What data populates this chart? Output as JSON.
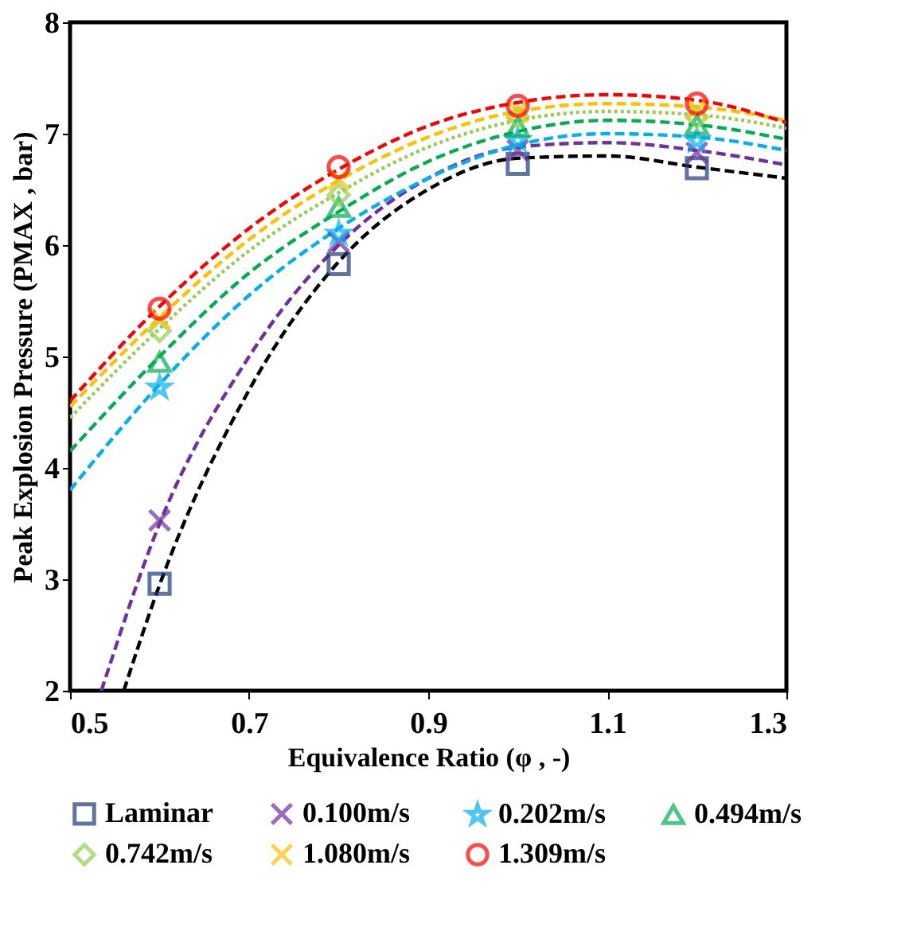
{
  "chart_data": {
    "type": "scatter",
    "xlabel": "Equivalence Ratio (φ , -)",
    "ylabel": "Peak Explosion Pressure (PMAX , bar)",
    "x": [
      0.6,
      0.8,
      1.0,
      1.2
    ],
    "xlim": [
      0.5,
      1.3
    ],
    "xticks": [
      0.5,
      0.7,
      0.9,
      1.1,
      1.3
    ],
    "ylim": [
      2,
      8
    ],
    "yticks": [
      2,
      3,
      4,
      5,
      6,
      7,
      8
    ],
    "grid": false,
    "legend": "bottom",
    "series": [
      {
        "name": "Laminar",
        "color": "#1f3a7a",
        "marker": "square",
        "values": [
          2.96,
          5.83,
          6.73,
          6.69
        ]
      },
      {
        "name": "0.100m/s",
        "color": "#7030a0",
        "marker": "cross",
        "values": [
          3.53,
          6.03,
          6.85,
          6.83
        ]
      },
      {
        "name": "0.202m/s",
        "color": "#00b0f0",
        "marker": "star",
        "values": [
          4.72,
          6.1,
          6.94,
          6.94
        ]
      },
      {
        "name": "0.494m/s",
        "color": "#00b050",
        "marker": "triangle",
        "values": [
          4.95,
          6.34,
          7.06,
          7.08
        ]
      },
      {
        "name": "0.742m/s",
        "color": "#92d050",
        "marker": "diamond",
        "values": [
          5.23,
          6.45,
          7.15,
          7.15
        ]
      },
      {
        "name": "1.080m/s",
        "color": "#ffc000",
        "marker": "cross",
        "values": [
          5.34,
          6.59,
          7.2,
          7.22
        ]
      },
      {
        "name": "1.309m/s",
        "color": "#ff0000",
        "marker": "circle",
        "values": [
          5.43,
          6.7,
          7.25,
          7.27
        ]
      },
      {
        "type": "line",
        "color": "#000000",
        "line_style": "dashed",
        "x": [
          0.56,
          0.6,
          0.7,
          0.8,
          0.9,
          1.0,
          1.1,
          1.2,
          1.3
        ],
        "values": [
          2,
          2.95,
          4.7,
          5.85,
          6.5,
          6.78,
          6.8,
          6.7,
          6.6
        ]
      },
      {
        "type": "line",
        "color": "#7030a0",
        "line_style": "dashed",
        "x": [
          0.535,
          0.6,
          0.7,
          0.8,
          0.9,
          1.0,
          1.1,
          1.2,
          1.3
        ],
        "values": [
          2,
          3.5,
          5.0,
          6.0,
          6.6,
          6.88,
          6.92,
          6.85,
          6.72
        ]
      },
      {
        "type": "line",
        "color": "#00b0f0",
        "line_style": "dashed",
        "x": [
          0.5,
          0.6,
          0.7,
          0.8,
          0.9,
          1.0,
          1.1,
          1.2,
          1.3
        ],
        "values": [
          3.8,
          4.75,
          5.55,
          6.15,
          6.6,
          6.9,
          7.0,
          6.97,
          6.85
        ]
      },
      {
        "type": "line",
        "color": "#00b050",
        "line_style": "dashed",
        "x": [
          0.5,
          0.6,
          0.7,
          0.8,
          0.9,
          1.0,
          1.1,
          1.2,
          1.3
        ],
        "values": [
          4.15,
          5.0,
          5.75,
          6.3,
          6.75,
          7.02,
          7.12,
          7.08,
          6.95
        ]
      },
      {
        "type": "line",
        "color": "#92d050",
        "line_style": "dotted",
        "x": [
          0.5,
          0.6,
          0.7,
          0.8,
          0.9,
          1.0,
          1.1,
          1.2,
          1.3
        ],
        "values": [
          4.45,
          5.25,
          5.95,
          6.47,
          6.88,
          7.12,
          7.2,
          7.17,
          7.05
        ]
      },
      {
        "type": "line",
        "color": "#ffc000",
        "line_style": "dashed",
        "x": [
          0.5,
          0.6,
          0.7,
          0.8,
          0.9,
          1.0,
          1.1,
          1.2,
          1.3
        ],
        "values": [
          4.55,
          5.35,
          6.05,
          6.58,
          6.97,
          7.2,
          7.27,
          7.24,
          7.12
        ]
      },
      {
        "type": "line",
        "color": "#ff0000",
        "line_style": "dashed",
        "x": [
          0.5,
          0.6,
          0.7,
          0.8,
          0.9,
          1.0,
          1.1,
          1.2,
          1.3
        ],
        "values": [
          4.6,
          5.45,
          6.15,
          6.68,
          7.07,
          7.28,
          7.35,
          7.3,
          7.1
        ]
      }
    ]
  }
}
